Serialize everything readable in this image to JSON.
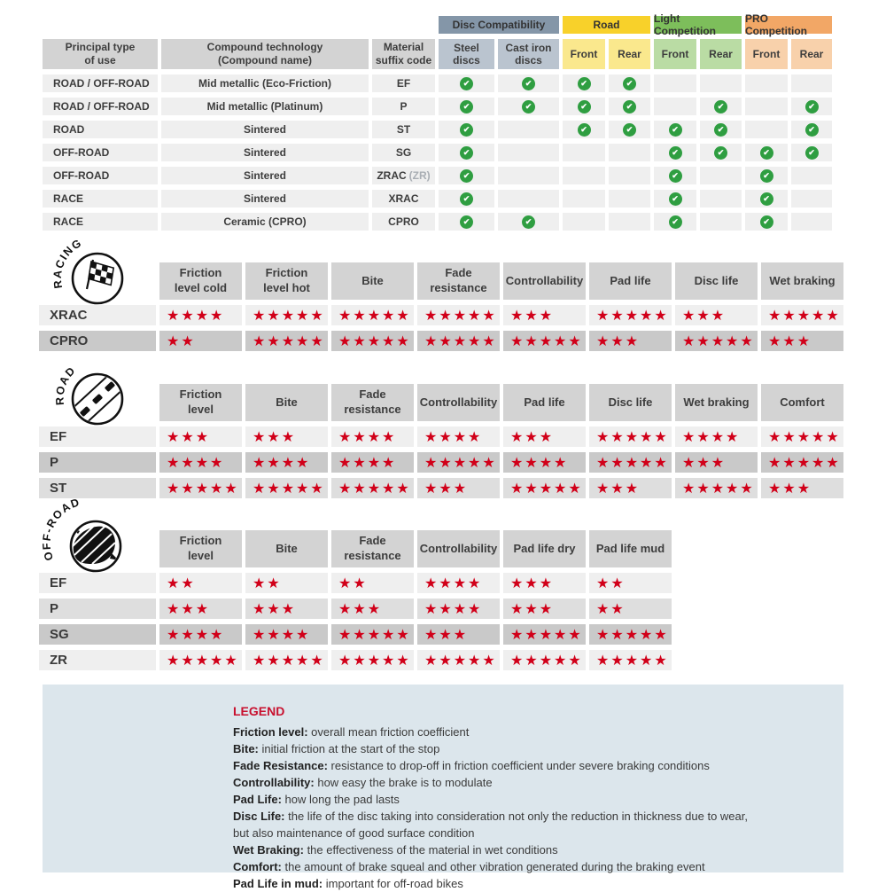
{
  "colors": {
    "star_red": "#d10019",
    "check_green": "#2f9e41",
    "header_gray": "#d3d3d3",
    "row_light": "#efefef",
    "row_medium": "#dedede",
    "row_dark": "#c9c9c9",
    "legend_bg": "#dce6ec",
    "legend_title": "#c8102e"
  },
  "compat_table": {
    "col_headers": [
      "Principal type\nof use",
      "Compound technology\n(Compound name)",
      "Material\nsuffix code"
    ],
    "groups": [
      {
        "label": "Disc Compatibility",
        "color": "#8496a8",
        "sub_color": "#bac4cf",
        "subs": [
          "Steel\ndiscs",
          "Cast iron\ndiscs"
        ]
      },
      {
        "label": "Road",
        "color": "#f8d12a",
        "sub_color": "#fae88d",
        "subs": [
          "Front",
          "Rear"
        ]
      },
      {
        "label": "Light Competition",
        "color": "#7dbe5b",
        "sub_color": "#badca4",
        "subs": [
          "Front",
          "Rear"
        ]
      },
      {
        "label": "PRO Competition",
        "color": "#f2a766",
        "sub_color": "#f8d1ab",
        "subs": [
          "Front",
          "Rear"
        ]
      }
    ],
    "rows": [
      {
        "use": "ROAD / OFF-ROAD",
        "tech": "Mid metallic (Eco-Friction)",
        "code": "EF",
        "code_suffix": "",
        "checks": [
          1,
          1,
          1,
          1,
          0,
          0,
          0,
          0
        ]
      },
      {
        "use": "ROAD / OFF-ROAD",
        "tech": "Mid metallic (Platinum)",
        "code": "P",
        "code_suffix": "",
        "checks": [
          1,
          1,
          1,
          1,
          0,
          1,
          0,
          1
        ]
      },
      {
        "use": "ROAD",
        "tech": "Sintered",
        "code": "ST",
        "code_suffix": "",
        "checks": [
          1,
          0,
          1,
          1,
          1,
          1,
          0,
          1
        ]
      },
      {
        "use": "OFF-ROAD",
        "tech": "Sintered",
        "code": "SG",
        "code_suffix": "",
        "checks": [
          1,
          0,
          0,
          0,
          1,
          1,
          1,
          1
        ]
      },
      {
        "use": "OFF-ROAD",
        "tech": "Sintered",
        "code": "ZRAC",
        "code_suffix": "(ZR)",
        "checks": [
          1,
          0,
          0,
          0,
          1,
          0,
          1,
          0
        ]
      },
      {
        "use": "RACE",
        "tech": "Sintered",
        "code": "XRAC",
        "code_suffix": "",
        "checks": [
          1,
          0,
          0,
          0,
          1,
          0,
          1,
          0
        ]
      },
      {
        "use": "RACE",
        "tech": "Ceramic (CPRO)",
        "code": "CPRO",
        "code_suffix": "",
        "checks": [
          1,
          1,
          0,
          0,
          1,
          0,
          1,
          0
        ]
      }
    ]
  },
  "rating_tables": [
    {
      "id": "racing",
      "icon_label": "RACING",
      "columns": [
        "Friction\nlevel cold",
        "Friction\nlevel hot",
        "Bite",
        "Fade\nresistance",
        "Controllability",
        "Pad life",
        "Disc life",
        "Wet braking"
      ],
      "rows": [
        {
          "label": "XRAC",
          "shade": "light",
          "stars": [
            4,
            5,
            5,
            5,
            3,
            5,
            3,
            5
          ]
        },
        {
          "label": "CPRO",
          "shade": "dark",
          "stars": [
            2,
            5,
            5,
            5,
            5,
            3,
            5,
            3
          ]
        }
      ]
    },
    {
      "id": "road",
      "icon_label": "ROAD",
      "columns": [
        "Friction\nlevel",
        "Bite",
        "Fade\nresistance",
        "Controllability",
        "Pad life",
        "Disc life",
        "Wet braking",
        "Comfort"
      ],
      "rows": [
        {
          "label": "EF",
          "shade": "light",
          "stars": [
            3,
            3,
            4,
            4,
            3,
            5,
            4,
            5
          ]
        },
        {
          "label": "P",
          "shade": "dark",
          "stars": [
            4,
            4,
            4,
            5,
            4,
            5,
            3,
            5
          ]
        },
        {
          "label": "ST",
          "shade": "medium",
          "stars": [
            5,
            5,
            5,
            3,
            5,
            3,
            5,
            3
          ]
        }
      ]
    },
    {
      "id": "offroad",
      "icon_label": "OFF-ROAD",
      "columns": [
        "Friction\nlevel",
        "Bite",
        "Fade\nresistance",
        "Controllability",
        "Pad life dry",
        "Pad life mud"
      ],
      "rows": [
        {
          "label": "EF",
          "shade": "light",
          "stars": [
            2,
            2,
            2,
            4,
            3,
            2
          ]
        },
        {
          "label": "P",
          "shade": "medium",
          "stars": [
            3,
            3,
            3,
            4,
            3,
            2
          ]
        },
        {
          "label": "SG",
          "shade": "dark",
          "stars": [
            4,
            4,
            5,
            3,
            5,
            5
          ]
        },
        {
          "label": "ZR",
          "shade": "light",
          "stars": [
            5,
            5,
            5,
            5,
            5,
            5
          ]
        }
      ]
    }
  ],
  "legend": {
    "title": "LEGEND",
    "items": [
      {
        "term": "Friction level",
        "text": "overall mean friction coefficient"
      },
      {
        "term": "Bite",
        "text": "initial friction at the start of the stop"
      },
      {
        "term": "Fade Resistance",
        "text": "resistance to drop-off in friction coefficient under severe braking conditions"
      },
      {
        "term": "Controllability",
        "text": "how easy the brake is to modulate"
      },
      {
        "term": "Pad Life",
        "text": "how long the pad lasts"
      },
      {
        "term": "Disc Life",
        "text": "the life of the disc taking into consideration not only the reduction in thickness due to wear,"
      },
      {
        "term": "",
        "text": "but also maintenance of good surface condition"
      },
      {
        "term": "Wet Braking",
        "text": "the effectiveness of the material in wet conditions"
      },
      {
        "term": "Comfort",
        "text": "the amount of brake squeal and other vibration generated during the braking event"
      },
      {
        "term": "Pad Life in mud",
        "text": "important for off-road bikes"
      }
    ]
  }
}
